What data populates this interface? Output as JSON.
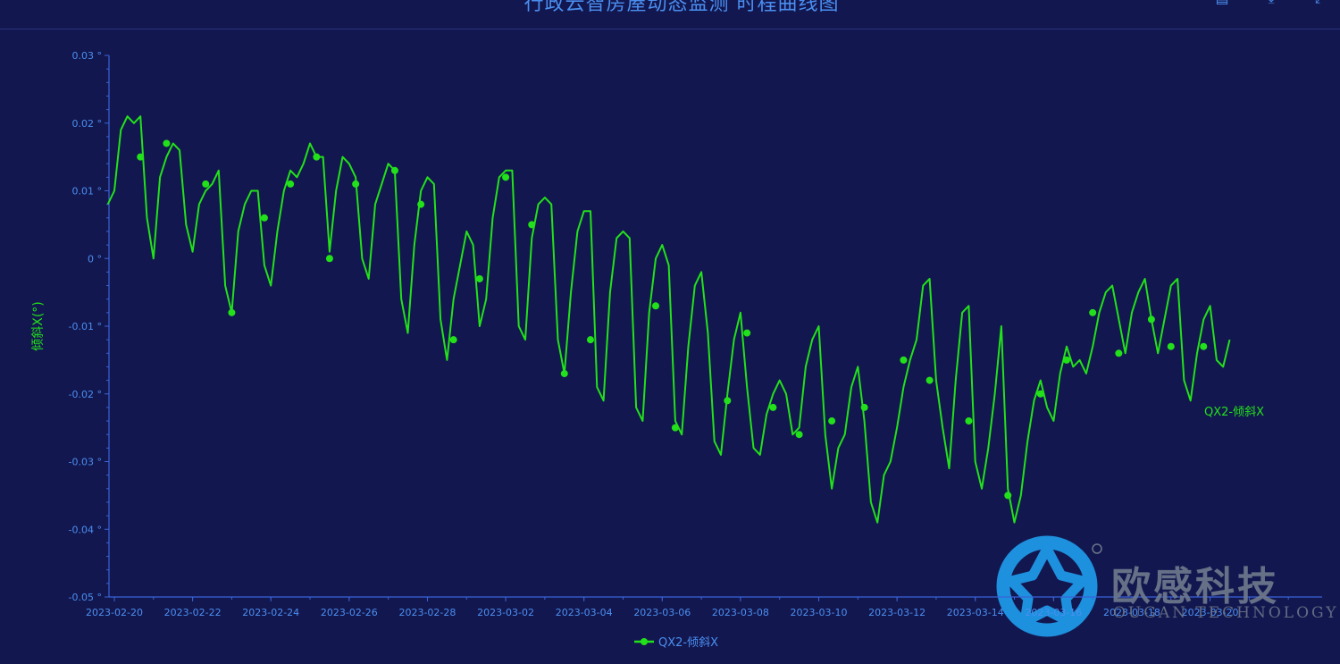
{
  "header": {
    "title": "行政云智房屋动态监测 时程曲线图",
    "tools": [
      {
        "name": "data-view-icon",
        "glyph": "▤"
      },
      {
        "name": "save-image-icon",
        "glyph": "⤓"
      },
      {
        "name": "fullscreen-icon",
        "glyph": "⤢"
      }
    ]
  },
  "colors": {
    "background": "#13174f",
    "axis": "#3a63d8",
    "tick_text": "#4a8ff0",
    "series": "#22e11a"
  },
  "chart_data": {
    "type": "line",
    "ylabel": "倾斜X(°)",
    "ylim": [
      -0.05,
      0.03
    ],
    "yticks": [
      0.03,
      0.02,
      0.01,
      0,
      -0.01,
      -0.02,
      -0.03,
      -0.04,
      -0.05
    ],
    "ytick_labels": [
      "0.03 °",
      "0.02 °",
      "0.01 °",
      "0 °",
      "-0.01 °",
      "-0.02 °",
      "-0.03 °",
      "-0.04 °",
      "-0.05 °"
    ],
    "xlim": [
      "2023-02-20",
      "2023-03-23"
    ],
    "xtick_labels": [
      "2023-02-20",
      "2023-02-22",
      "2023-02-24",
      "2023-02-26",
      "2023-02-28",
      "2023-03-02",
      "2023-03-04",
      "2023-03-06",
      "2023-03-08",
      "2023-03-10",
      "2023-03-12",
      "2023-03-14",
      "2023-03-16",
      "2023-03-18",
      "2023-03-20"
    ],
    "legend": "bottom-center",
    "grid": false,
    "series": [
      {
        "name": "QX2-倾斜X",
        "end_label": "QX2-倾斜X",
        "points": [
          [
            "2023-02-19 20:00",
            0.008
          ],
          [
            "2023-02-20 00:00",
            0.01
          ],
          [
            "2023-02-20 04:00",
            0.019
          ],
          [
            "2023-02-20 08:00",
            0.021
          ],
          [
            "2023-02-20 12:00",
            0.02
          ],
          [
            "2023-02-20 16:00",
            0.021
          ],
          [
            "2023-02-20 20:00",
            0.006
          ],
          [
            "2023-02-21 00:00",
            0.0
          ],
          [
            "2023-02-21 04:00",
            0.012
          ],
          [
            "2023-02-21 08:00",
            0.015
          ],
          [
            "2023-02-21 12:00",
            0.017
          ],
          [
            "2023-02-21 16:00",
            0.016
          ],
          [
            "2023-02-21 20:00",
            0.005
          ],
          [
            "2023-02-22 00:00",
            0.001
          ],
          [
            "2023-02-22 04:00",
            0.008
          ],
          [
            "2023-02-22 08:00",
            0.01
          ],
          [
            "2023-02-22 12:00",
            0.011
          ],
          [
            "2023-02-22 16:00",
            0.013
          ],
          [
            "2023-02-22 20:00",
            -0.004
          ],
          [
            "2023-02-23 00:00",
            -0.008
          ],
          [
            "2023-02-23 04:00",
            0.004
          ],
          [
            "2023-02-23 08:00",
            0.008
          ],
          [
            "2023-02-23 12:00",
            0.01
          ],
          [
            "2023-02-23 16:00",
            0.01
          ],
          [
            "2023-02-23 20:00",
            -0.001
          ],
          [
            "2023-02-24 00:00",
            -0.004
          ],
          [
            "2023-02-24 04:00",
            0.004
          ],
          [
            "2023-02-24 08:00",
            0.01
          ],
          [
            "2023-02-24 12:00",
            0.013
          ],
          [
            "2023-02-24 16:00",
            0.012
          ],
          [
            "2023-02-24 20:00",
            0.014
          ],
          [
            "2023-02-25 00:00",
            0.017
          ],
          [
            "2023-02-25 04:00",
            0.015
          ],
          [
            "2023-02-25 08:00",
            0.015
          ],
          [
            "2023-02-25 12:00",
            0.001
          ],
          [
            "2023-02-25 16:00",
            0.01
          ],
          [
            "2023-02-25 20:00",
            0.015
          ],
          [
            "2023-02-26 00:00",
            0.014
          ],
          [
            "2023-02-26 04:00",
            0.012
          ],
          [
            "2023-02-26 08:00",
            0.0
          ],
          [
            "2023-02-26 12:00",
            -0.003
          ],
          [
            "2023-02-26 16:00",
            0.008
          ],
          [
            "2023-02-26 20:00",
            0.011
          ],
          [
            "2023-02-27 00:00",
            0.014
          ],
          [
            "2023-02-27 04:00",
            0.013
          ],
          [
            "2023-02-27 08:00",
            -0.006
          ],
          [
            "2023-02-27 12:00",
            -0.011
          ],
          [
            "2023-02-27 16:00",
            0.002
          ],
          [
            "2023-02-27 20:00",
            0.01
          ],
          [
            "2023-02-28 00:00",
            0.012
          ],
          [
            "2023-02-28 04:00",
            0.011
          ],
          [
            "2023-02-28 08:00",
            -0.009
          ],
          [
            "2023-02-28 12:00",
            -0.015
          ],
          [
            "2023-02-28 16:00",
            -0.006
          ],
          [
            "2023-02-28 20:00",
            -0.001
          ],
          [
            "2023-03-01 00:00",
            0.004
          ],
          [
            "2023-03-01 04:00",
            0.002
          ],
          [
            "2023-03-01 08:00",
            -0.01
          ],
          [
            "2023-03-01 12:00",
            -0.006
          ],
          [
            "2023-03-01 16:00",
            0.006
          ],
          [
            "2023-03-01 20:00",
            0.012
          ],
          [
            "2023-03-02 00:00",
            0.013
          ],
          [
            "2023-03-02 04:00",
            0.013
          ],
          [
            "2023-03-02 08:00",
            -0.01
          ],
          [
            "2023-03-02 12:00",
            -0.012
          ],
          [
            "2023-03-02 16:00",
            0.003
          ],
          [
            "2023-03-02 20:00",
            0.008
          ],
          [
            "2023-03-03 00:00",
            0.009
          ],
          [
            "2023-03-03 04:00",
            0.008
          ],
          [
            "2023-03-03 08:00",
            -0.012
          ],
          [
            "2023-03-03 12:00",
            -0.017
          ],
          [
            "2023-03-03 16:00",
            -0.005
          ],
          [
            "2023-03-03 20:00",
            0.004
          ],
          [
            "2023-03-04 00:00",
            0.007
          ],
          [
            "2023-03-04 04:00",
            0.007
          ],
          [
            "2023-03-04 08:00",
            -0.019
          ],
          [
            "2023-03-04 12:00",
            -0.021
          ],
          [
            "2023-03-04 16:00",
            -0.005
          ],
          [
            "2023-03-04 20:00",
            0.003
          ],
          [
            "2023-03-05 00:00",
            0.004
          ],
          [
            "2023-03-05 04:00",
            0.003
          ],
          [
            "2023-03-05 08:00",
            -0.022
          ],
          [
            "2023-03-05 12:00",
            -0.024
          ],
          [
            "2023-03-05 16:00",
            -0.008
          ],
          [
            "2023-03-05 20:00",
            0.0
          ],
          [
            "2023-03-06 00:00",
            0.002
          ],
          [
            "2023-03-06 04:00",
            -0.001
          ],
          [
            "2023-03-06 08:00",
            -0.024
          ],
          [
            "2023-03-06 12:00",
            -0.026
          ],
          [
            "2023-03-06 16:00",
            -0.013
          ],
          [
            "2023-03-06 20:00",
            -0.004
          ],
          [
            "2023-03-07 00:00",
            -0.002
          ],
          [
            "2023-03-07 04:00",
            -0.011
          ],
          [
            "2023-03-07 08:00",
            -0.027
          ],
          [
            "2023-03-07 12:00",
            -0.029
          ],
          [
            "2023-03-07 16:00",
            -0.02
          ],
          [
            "2023-03-07 20:00",
            -0.012
          ],
          [
            "2023-03-08 00:00",
            -0.008
          ],
          [
            "2023-03-08 04:00",
            -0.019
          ],
          [
            "2023-03-08 08:00",
            -0.028
          ],
          [
            "2023-03-08 12:00",
            -0.029
          ],
          [
            "2023-03-08 16:00",
            -0.023
          ],
          [
            "2023-03-08 20:00",
            -0.02
          ],
          [
            "2023-03-09 00:00",
            -0.018
          ],
          [
            "2023-03-09 04:00",
            -0.02
          ],
          [
            "2023-03-09 08:00",
            -0.026
          ],
          [
            "2023-03-09 12:00",
            -0.025
          ],
          [
            "2023-03-09 16:00",
            -0.016
          ],
          [
            "2023-03-09 20:00",
            -0.012
          ],
          [
            "2023-03-10 00:00",
            -0.01
          ],
          [
            "2023-03-10 04:00",
            -0.026
          ],
          [
            "2023-03-10 08:00",
            -0.034
          ],
          [
            "2023-03-10 12:00",
            -0.028
          ],
          [
            "2023-03-10 16:00",
            -0.026
          ],
          [
            "2023-03-10 20:00",
            -0.019
          ],
          [
            "2023-03-11 00:00",
            -0.016
          ],
          [
            "2023-03-11 04:00",
            -0.024
          ],
          [
            "2023-03-11 08:00",
            -0.036
          ],
          [
            "2023-03-11 12:00",
            -0.039
          ],
          [
            "2023-03-11 16:00",
            -0.032
          ],
          [
            "2023-03-11 20:00",
            -0.03
          ],
          [
            "2023-03-12 00:00",
            -0.025
          ],
          [
            "2023-03-12 04:00",
            -0.019
          ],
          [
            "2023-03-12 08:00",
            -0.015
          ],
          [
            "2023-03-12 12:00",
            -0.012
          ],
          [
            "2023-03-12 16:00",
            -0.004
          ],
          [
            "2023-03-12 20:00",
            -0.003
          ],
          [
            "2023-03-13 00:00",
            -0.018
          ],
          [
            "2023-03-13 04:00",
            -0.025
          ],
          [
            "2023-03-13 08:00",
            -0.031
          ],
          [
            "2023-03-13 12:00",
            -0.018
          ],
          [
            "2023-03-13 16:00",
            -0.008
          ],
          [
            "2023-03-13 20:00",
            -0.007
          ],
          [
            "2023-03-14 00:00",
            -0.03
          ],
          [
            "2023-03-14 04:00",
            -0.034
          ],
          [
            "2023-03-14 08:00",
            -0.028
          ],
          [
            "2023-03-14 12:00",
            -0.02
          ],
          [
            "2023-03-14 16:00",
            -0.01
          ],
          [
            "2023-03-14 20:00",
            -0.034
          ],
          [
            "2023-03-15 00:00",
            -0.039
          ],
          [
            "2023-03-15 04:00",
            -0.035
          ],
          [
            "2023-03-15 08:00",
            -0.027
          ],
          [
            "2023-03-15 12:00",
            -0.021
          ],
          [
            "2023-03-15 16:00",
            -0.018
          ],
          [
            "2023-03-15 20:00",
            -0.022
          ],
          [
            "2023-03-16 00:00",
            -0.024
          ],
          [
            "2023-03-16 04:00",
            -0.017
          ],
          [
            "2023-03-16 08:00",
            -0.013
          ],
          [
            "2023-03-16 12:00",
            -0.016
          ],
          [
            "2023-03-16 16:00",
            -0.015
          ],
          [
            "2023-03-16 20:00",
            -0.017
          ],
          [
            "2023-03-17 00:00",
            -0.013
          ],
          [
            "2023-03-17 04:00",
            -0.008
          ],
          [
            "2023-03-17 08:00",
            -0.005
          ],
          [
            "2023-03-17 12:00",
            -0.004
          ],
          [
            "2023-03-17 16:00",
            -0.009
          ],
          [
            "2023-03-17 20:00",
            -0.014
          ],
          [
            "2023-03-18 00:00",
            -0.008
          ],
          [
            "2023-03-18 04:00",
            -0.005
          ],
          [
            "2023-03-18 08:00",
            -0.003
          ],
          [
            "2023-03-18 12:00",
            -0.009
          ],
          [
            "2023-03-18 16:00",
            -0.014
          ],
          [
            "2023-03-18 20:00",
            -0.009
          ],
          [
            "2023-03-19 00:00",
            -0.004
          ],
          [
            "2023-03-19 04:00",
            -0.003
          ],
          [
            "2023-03-19 08:00",
            -0.018
          ],
          [
            "2023-03-19 12:00",
            -0.021
          ],
          [
            "2023-03-19 16:00",
            -0.014
          ],
          [
            "2023-03-19 20:00",
            -0.009
          ],
          [
            "2023-03-20 00:00",
            -0.007
          ],
          [
            "2023-03-20 04:00",
            -0.015
          ],
          [
            "2023-03-20 08:00",
            -0.016
          ],
          [
            "2023-03-20 12:00",
            -0.012
          ]
        ],
        "markers": [
          [
            "2023-02-20 16:00",
            0.015
          ],
          [
            "2023-02-21 08:00",
            0.017
          ],
          [
            "2023-02-22 08:00",
            0.011
          ],
          [
            "2023-02-23 00:00",
            -0.008
          ],
          [
            "2023-02-23 20:00",
            0.006
          ],
          [
            "2023-02-24 12:00",
            0.011
          ],
          [
            "2023-02-25 04:00",
            0.015
          ],
          [
            "2023-02-25 12:00",
            0.0
          ],
          [
            "2023-02-26 04:00",
            0.011
          ],
          [
            "2023-02-27 04:00",
            0.013
          ],
          [
            "2023-02-27 20:00",
            0.008
          ],
          [
            "2023-02-28 16:00",
            -0.012
          ],
          [
            "2023-03-01 08:00",
            -0.003
          ],
          [
            "2023-03-02 00:00",
            0.012
          ],
          [
            "2023-03-02 16:00",
            0.005
          ],
          [
            "2023-03-03 12:00",
            -0.017
          ],
          [
            "2023-03-04 04:00",
            -0.012
          ],
          [
            "2023-03-05 20:00",
            -0.007
          ],
          [
            "2023-03-06 08:00",
            -0.025
          ],
          [
            "2023-03-07 16:00",
            -0.021
          ],
          [
            "2023-03-08 04:00",
            -0.011
          ],
          [
            "2023-03-08 20:00",
            -0.022
          ],
          [
            "2023-03-09 12:00",
            -0.026
          ],
          [
            "2023-03-10 08:00",
            -0.024
          ],
          [
            "2023-03-11 04:00",
            -0.022
          ],
          [
            "2023-03-12 04:00",
            -0.015
          ],
          [
            "2023-03-12 20:00",
            -0.018
          ],
          [
            "2023-03-13 20:00",
            -0.024
          ],
          [
            "2023-03-14 20:00",
            -0.035
          ],
          [
            "2023-03-15 16:00",
            -0.02
          ],
          [
            "2023-03-16 08:00",
            -0.015
          ],
          [
            "2023-03-17 00:00",
            -0.008
          ],
          [
            "2023-03-17 16:00",
            -0.014
          ],
          [
            "2023-03-18 12:00",
            -0.009
          ],
          [
            "2023-03-19 00:00",
            -0.013
          ],
          [
            "2023-03-19 20:00",
            -0.013
          ]
        ]
      }
    ]
  },
  "watermark": {
    "brand": "欧感科技",
    "sub": "OUGAN TECHNOLOGY",
    "registered": "®"
  }
}
